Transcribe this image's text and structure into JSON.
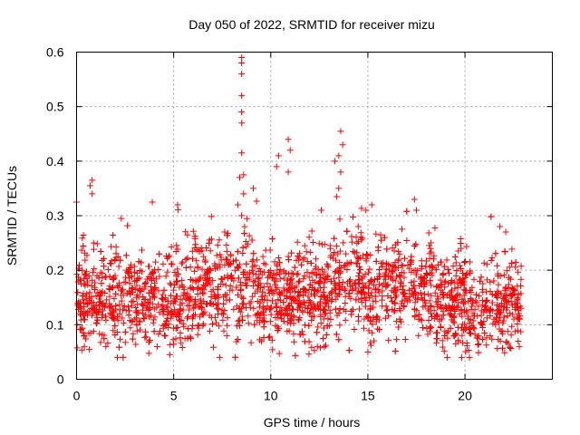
{
  "chart_data": {
    "type": "scatter",
    "title": "Day 050 of 2022, SRMTID for receiver mizu",
    "xlabel": "GPS time / hours",
    "ylabel": "SRMTID / TECUs",
    "xlim": [
      0,
      24.5
    ],
    "ylim": [
      0,
      0.6
    ],
    "xticks": [
      0,
      5,
      10,
      15,
      20
    ],
    "xtick_labels": [
      "0",
      "5",
      "10",
      "15",
      "20"
    ],
    "yticks": [
      0,
      0.1,
      0.2,
      0.3,
      0.4,
      0.5,
      0.6
    ],
    "ytick_labels": [
      "0",
      "0.1",
      "0.2",
      "0.3",
      "0.4",
      "0.5",
      "0.6"
    ],
    "grid": true,
    "marker": "+",
    "color": "#ff0000",
    "x_range_data": [
      0,
      22.9
    ],
    "series": [
      {
        "name": "SRMTID",
        "approx_points": 2600,
        "note": "dense scatter; baseline mostly 0.05-0.30 TECU",
        "highlights": [
          {
            "x": 8.5,
            "y": 0.59
          },
          {
            "x": 8.5,
            "y": 0.58
          },
          {
            "x": 8.5,
            "y": 0.56
          },
          {
            "x": 8.5,
            "y": 0.52
          },
          {
            "x": 8.5,
            "y": 0.49
          },
          {
            "x": 8.5,
            "y": 0.47
          },
          {
            "x": 8.5,
            "y": 0.415
          },
          {
            "x": 8.4,
            "y": 0.37
          },
          {
            "x": 8.6,
            "y": 0.375
          },
          {
            "x": 8.6,
            "y": 0.34
          },
          {
            "x": 8.3,
            "y": 0.32
          },
          {
            "x": 10.9,
            "y": 0.44
          },
          {
            "x": 11.0,
            "y": 0.42
          },
          {
            "x": 10.3,
            "y": 0.39
          },
          {
            "x": 10.9,
            "y": 0.38
          },
          {
            "x": 10.4,
            "y": 0.41
          },
          {
            "x": 13.6,
            "y": 0.455
          },
          {
            "x": 13.7,
            "y": 0.43
          },
          {
            "x": 13.5,
            "y": 0.41
          },
          {
            "x": 13.3,
            "y": 0.4
          },
          {
            "x": 13.6,
            "y": 0.38
          },
          {
            "x": 13.5,
            "y": 0.35
          },
          {
            "x": 13.4,
            "y": 0.335
          },
          {
            "x": 0.8,
            "y": 0.365
          },
          {
            "x": 0.7,
            "y": 0.355
          },
          {
            "x": 0.8,
            "y": 0.34
          },
          {
            "x": 0.0,
            "y": 0.325
          },
          {
            "x": 3.9,
            "y": 0.325
          },
          {
            "x": 5.2,
            "y": 0.32
          },
          {
            "x": 2.3,
            "y": 0.295
          },
          {
            "x": 17.4,
            "y": 0.33
          },
          {
            "x": 17.5,
            "y": 0.31
          },
          {
            "x": 15.2,
            "y": 0.32
          },
          {
            "x": 14.9,
            "y": 0.31
          },
          {
            "x": 12.6,
            "y": 0.31
          },
          {
            "x": 9.1,
            "y": 0.35
          },
          {
            "x": 21.8,
            "y": 0.28
          },
          {
            "x": 22.1,
            "y": 0.27
          },
          {
            "x": 2.1,
            "y": 0.04
          },
          {
            "x": 4.8,
            "y": 0.045
          },
          {
            "x": 15.0,
            "y": 0.05
          },
          {
            "x": 22.8,
            "y": 0.06
          },
          {
            "x": 0.4,
            "y": 0.06
          },
          {
            "x": 12.4,
            "y": 0.06
          }
        ]
      }
    ]
  }
}
